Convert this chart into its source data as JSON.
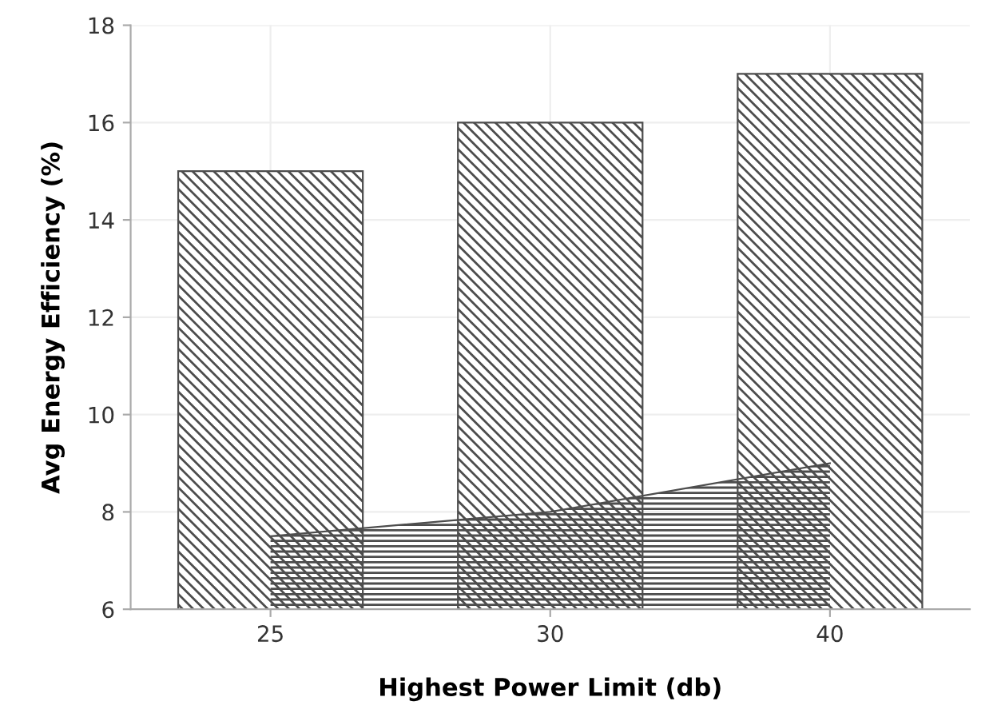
{
  "chart_data": {
    "type": "bar",
    "xlabel": "Highest Power Limit (db)",
    "ylabel": "Avg Energy Efficiency (%)",
    "categories": [
      "25",
      "30",
      "40"
    ],
    "series": [
      {
        "color": "#4d4d4d",
        "values": [
          15,
          16,
          17
        ]
      },
      {
        "type": "area",
        "color": "#4d4d4d",
        "values": [
          7.5,
          8,
          9
        ]
      }
    ],
    "ylim": [
      6,
      18
    ],
    "yticks": [
      6,
      8,
      10,
      12,
      14,
      16,
      18
    ],
    "grid": true
  }
}
